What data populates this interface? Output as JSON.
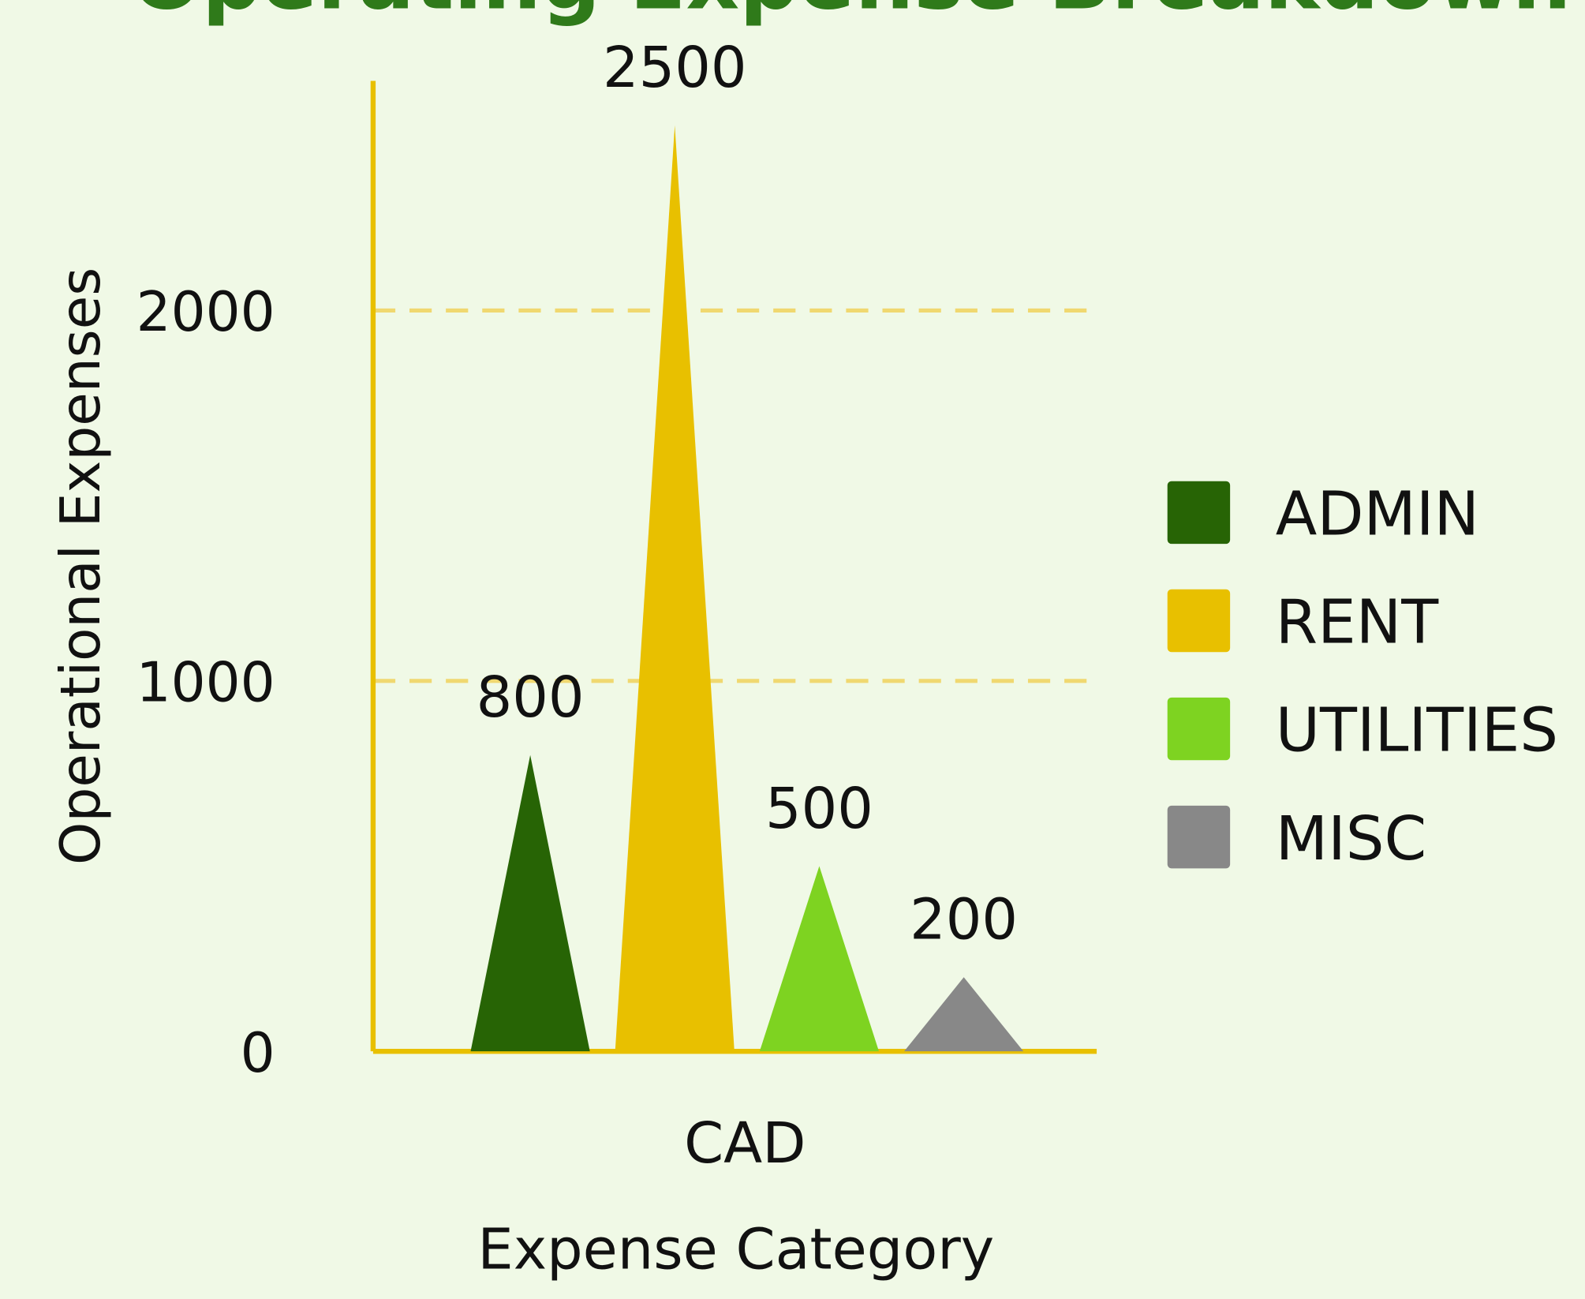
{
  "chart_data": {
    "type": "bar",
    "title": "Operating Expense Breakdown",
    "xlabel": "Expense Category",
    "ylabel": "Operational Expenses",
    "categories": [
      "CAD"
    ],
    "series": [
      {
        "name": "ADMIN",
        "color": "#276405",
        "values": [
          800
        ]
      },
      {
        "name": "RENT",
        "color": "#e8c000",
        "values": [
          2500
        ]
      },
      {
        "name": "UTILITIES",
        "color": "#7ed321",
        "values": [
          500
        ]
      },
      {
        "name": "MISC",
        "color": "#888888",
        "values": [
          200
        ]
      }
    ],
    "ylim": [
      0,
      2620
    ],
    "yticks": [
      0,
      1000,
      2000
    ],
    "grid": true,
    "legend": "right"
  }
}
